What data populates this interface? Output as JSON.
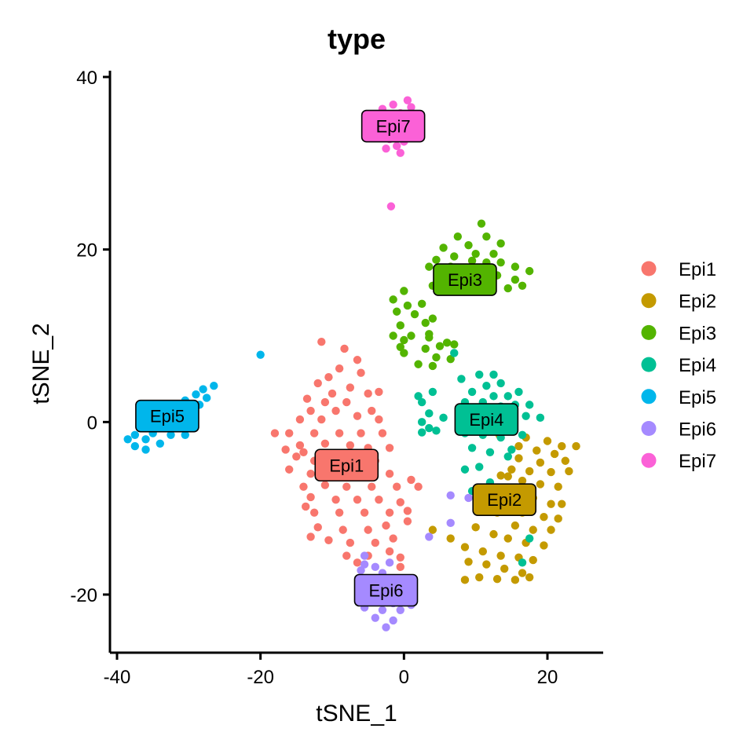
{
  "chart_data": {
    "type": "scatter",
    "title": "type",
    "xlabel": "tSNE_1",
    "ylabel": "tSNE_2",
    "xlim": [
      -41,
      27.5
    ],
    "ylim": [
      -26.5,
      41
    ],
    "xticks": [
      -40,
      -20,
      0,
      20
    ],
    "yticks": [
      -20,
      0,
      20,
      40
    ],
    "grid": false,
    "legend_position": "right",
    "series": [
      {
        "name": "Epi1",
        "color": "#F8766D",
        "label_pos": [
          -8,
          -5
        ],
        "points": [
          [
            -11.5,
            9.3
          ],
          [
            -6.5,
            7.2
          ],
          [
            -9,
            6.2
          ],
          [
            -10.5,
            5.2
          ],
          [
            -6,
            5.7
          ],
          [
            -12,
            4.5
          ],
          [
            -7.5,
            4
          ],
          [
            -10,
            3.3
          ],
          [
            -5,
            3.3
          ],
          [
            -13.5,
            2.7
          ],
          [
            -11,
            2.3
          ],
          [
            -8,
            2.3
          ],
          [
            -4.5,
            1.3
          ],
          [
            -13,
            1.3
          ],
          [
            -9.5,
            1.3
          ],
          [
            -6.5,
            0.7
          ],
          [
            -14.5,
            0.3
          ],
          [
            -11.5,
            0.3
          ],
          [
            -3.5,
            0.3
          ],
          [
            -16,
            -1.3
          ],
          [
            -12.5,
            -1.3
          ],
          [
            -9,
            -1.3
          ],
          [
            -6,
            -1.3
          ],
          [
            -3,
            -1.3
          ],
          [
            -14.5,
            -2.7
          ],
          [
            -11,
            -2.5
          ],
          [
            -7.5,
            -2.7
          ],
          [
            -5,
            -3
          ],
          [
            -2,
            -3
          ],
          [
            -15,
            -4
          ],
          [
            -12.5,
            -4.5
          ],
          [
            -9,
            -4.2
          ],
          [
            -4,
            -4.5
          ],
          [
            -16,
            -5.5
          ],
          [
            -13,
            -6
          ],
          [
            -10,
            -5.7
          ],
          [
            -6,
            -6
          ],
          [
            -2,
            -6
          ],
          [
            1,
            -6.7
          ],
          [
            -14,
            -7.5
          ],
          [
            -11,
            -7.3
          ],
          [
            -8,
            -7.5
          ],
          [
            -4.5,
            -7.5
          ],
          [
            -1,
            -7.5
          ],
          [
            2,
            -7.5
          ],
          [
            -13,
            -8.7
          ],
          [
            -9.5,
            -9
          ],
          [
            -6.5,
            -9
          ],
          [
            -3.5,
            -9
          ],
          [
            -0.5,
            -9.3
          ],
          [
            -12.5,
            -10.5
          ],
          [
            -9,
            -10.5
          ],
          [
            -5.5,
            -10.5
          ],
          [
            -2,
            -10.5
          ],
          [
            0.5,
            -10.3
          ],
          [
            -12,
            -12.2
          ],
          [
            -8.5,
            -12.5
          ],
          [
            -5,
            -12.5
          ],
          [
            -2.5,
            -12
          ],
          [
            0.5,
            -11.5
          ],
          [
            -13,
            -13.3
          ],
          [
            -10.5,
            -13.7
          ],
          [
            -7.5,
            -14
          ],
          [
            -4,
            -14
          ],
          [
            -1.5,
            -13.5
          ],
          [
            -8,
            -15.5
          ],
          [
            -5,
            -15.5
          ],
          [
            -2,
            -15
          ],
          [
            -6.5,
            -16.3
          ],
          [
            -0.5,
            -15.7
          ],
          [
            -0.5,
            -16.8
          ],
          [
            -18,
            -1.3
          ],
          [
            -16.5,
            -3.2
          ],
          [
            -14,
            -3.5
          ],
          [
            -13.7,
            -9.8
          ],
          [
            -3.5,
            3.5
          ],
          [
            -8.3,
            8.5
          ]
        ]
      },
      {
        "name": "Epi2",
        "color": "#C49A00",
        "label_pos": [
          14,
          -9
        ],
        "points": [
          [
            17,
            -1.8
          ],
          [
            20,
            -2.2
          ],
          [
            22,
            -2.8
          ],
          [
            24,
            -2.8
          ],
          [
            18.5,
            -3.3
          ],
          [
            21,
            -3.7
          ],
          [
            16,
            -4.2
          ],
          [
            19,
            -4.7
          ],
          [
            22.5,
            -4.5
          ],
          [
            15,
            -5.5
          ],
          [
            17.5,
            -5.7
          ],
          [
            20.5,
            -5.8
          ],
          [
            23,
            -5.7
          ],
          [
            13.5,
            -6.2
          ],
          [
            16.5,
            -6.8
          ],
          [
            19,
            -7.2
          ],
          [
            21.5,
            -7.5
          ],
          [
            15,
            -7.8
          ],
          [
            18,
            -8.8
          ],
          [
            20.5,
            -9.5
          ],
          [
            22,
            -9.5
          ],
          [
            16.5,
            -10.5
          ],
          [
            19.5,
            -11
          ],
          [
            21.5,
            -11.2
          ],
          [
            13,
            -10.5
          ],
          [
            15.5,
            -12
          ],
          [
            18,
            -12.5
          ],
          [
            20.5,
            -12.5
          ],
          [
            10,
            -12.2
          ],
          [
            12.5,
            -13
          ],
          [
            14.5,
            -13.5
          ],
          [
            17,
            -14
          ],
          [
            19.5,
            -14.3
          ],
          [
            8.5,
            -14.5
          ],
          [
            11,
            -15
          ],
          [
            13.5,
            -15.5
          ],
          [
            16,
            -15.7
          ],
          [
            18,
            -16
          ],
          [
            9,
            -16.2
          ],
          [
            11.5,
            -16.5
          ],
          [
            14,
            -17
          ],
          [
            16.5,
            -17.5
          ],
          [
            10.5,
            -18
          ],
          [
            13,
            -18.2
          ],
          [
            15.5,
            -18.3
          ],
          [
            17.5,
            -18
          ],
          [
            6.5,
            -13.5
          ],
          [
            8.5,
            -18.3
          ],
          [
            4,
            -12.5
          ],
          [
            14.5,
            -6.3
          ],
          [
            16,
            -2.8
          ],
          [
            13.3,
            -1.5
          ]
        ]
      },
      {
        "name": "Epi3",
        "color": "#53B400",
        "label_pos": [
          8.5,
          16.5
        ],
        "points": [
          [
            10.8,
            23
          ],
          [
            7.5,
            21.5
          ],
          [
            11.5,
            21.5
          ],
          [
            9,
            20.5
          ],
          [
            13.5,
            20.7
          ],
          [
            5.5,
            20.2
          ],
          [
            10,
            19.5
          ],
          [
            12.5,
            19.5
          ],
          [
            7,
            19.2
          ],
          [
            4.5,
            18.8
          ],
          [
            9.5,
            18.7
          ],
          [
            11.5,
            18.5
          ],
          [
            13.5,
            18.5
          ],
          [
            3.5,
            18
          ],
          [
            6.5,
            18
          ],
          [
            8.5,
            17.7
          ],
          [
            15.5,
            18
          ],
          [
            17.5,
            17.5
          ],
          [
            5,
            17
          ],
          [
            10.5,
            17
          ],
          [
            13,
            17
          ],
          [
            15.5,
            16.5
          ],
          [
            4,
            15.8
          ],
          [
            9,
            16
          ],
          [
            12,
            15.5
          ],
          [
            14.5,
            15.5
          ],
          [
            7,
            15.5
          ],
          [
            16.5,
            15.8
          ],
          [
            -1.5,
            14.2
          ],
          [
            0,
            15.2
          ],
          [
            0.5,
            13.5
          ],
          [
            -1,
            12.8
          ],
          [
            1.5,
            12.5
          ],
          [
            2.5,
            13.7
          ],
          [
            -0.5,
            11.2
          ],
          [
            3,
            11.5
          ],
          [
            4,
            12
          ],
          [
            3.5,
            10.2
          ],
          [
            -1.5,
            10
          ],
          [
            0,
            9.5
          ],
          [
            1,
            10
          ],
          [
            -0.5,
            8.7
          ],
          [
            3,
            8.5
          ],
          [
            6,
            9.2
          ],
          [
            5,
            8.8
          ],
          [
            7,
            9
          ],
          [
            4.5,
            7.5
          ],
          [
            6.5,
            7.3
          ],
          [
            2,
            6.7
          ],
          [
            4,
            6.5
          ],
          [
            0,
            8
          ],
          [
            3.5,
            9.8
          ]
        ]
      },
      {
        "name": "Epi4",
        "color": "#00C094",
        "label_pos": [
          11.5,
          0.3
        ],
        "points": [
          [
            10.5,
            5.5
          ],
          [
            12.5,
            5.5
          ],
          [
            8,
            5
          ],
          [
            11.5,
            4.2
          ],
          [
            13.5,
            4.5
          ],
          [
            9.5,
            3.5
          ],
          [
            12.5,
            3
          ],
          [
            14.5,
            3
          ],
          [
            16,
            3.5
          ],
          [
            8.5,
            2.3
          ],
          [
            11,
            2.3
          ],
          [
            13.5,
            1.8
          ],
          [
            15.5,
            2
          ],
          [
            17.5,
            2
          ],
          [
            9.5,
            1.2
          ],
          [
            12,
            0.8
          ],
          [
            14.5,
            0.5
          ],
          [
            17,
            0.7
          ],
          [
            19,
            0.5
          ],
          [
            2.5,
            2.3
          ],
          [
            3.5,
            1
          ],
          [
            2.5,
            0
          ],
          [
            3.5,
            -0.7
          ],
          [
            4.5,
            -1
          ],
          [
            2.5,
            -1.2
          ],
          [
            8.5,
            -1.3
          ],
          [
            11,
            -1.5
          ],
          [
            13.5,
            -1.8
          ],
          [
            16.5,
            -1.5
          ],
          [
            9.5,
            -3
          ],
          [
            12,
            -3.5
          ],
          [
            14.5,
            -4
          ],
          [
            8.5,
            -5.5
          ],
          [
            10.5,
            -5.2
          ],
          [
            12,
            -7
          ],
          [
            9.5,
            -8
          ],
          [
            15,
            -3.2
          ],
          [
            13,
            -9.5
          ],
          [
            17.5,
            -13.5
          ],
          [
            16.5,
            -16.3
          ],
          [
            7,
            8
          ],
          [
            5.5,
            0.5
          ],
          [
            2,
            3
          ],
          [
            4,
            3.5
          ]
        ]
      },
      {
        "name": "Epi5",
        "color": "#00B6EB",
        "label_pos": [
          -33,
          0.7
        ],
        "points": [
          [
            -20,
            7.8
          ],
          [
            -26.5,
            4.2
          ],
          [
            -28,
            3.8
          ],
          [
            -29,
            3.2
          ],
          [
            -27.5,
            2.8
          ],
          [
            -30.5,
            2.5
          ],
          [
            -28.5,
            2
          ],
          [
            -31.5,
            1.7
          ],
          [
            -30,
            1.2
          ],
          [
            -33.5,
            1.2
          ],
          [
            -32,
            0.5
          ],
          [
            -35,
            0.2
          ],
          [
            -33.5,
            -0.5
          ],
          [
            -36.5,
            -0.7
          ],
          [
            -31,
            -0.5
          ],
          [
            -35,
            -1.3
          ],
          [
            -37.5,
            -1.5
          ],
          [
            -32.5,
            -1.5
          ],
          [
            -36,
            -2
          ],
          [
            -38.5,
            -2
          ],
          [
            -34,
            -2.5
          ],
          [
            -37.5,
            -2.8
          ],
          [
            -36,
            -3.2
          ],
          [
            -30.5,
            -1.5
          ]
        ]
      },
      {
        "name": "Epi6",
        "color": "#A58AFF",
        "label_pos": [
          -2.5,
          -19.5
        ],
        "points": [
          [
            -5.5,
            -16.5
          ],
          [
            -4,
            -16.8
          ],
          [
            -6,
            -17.2
          ],
          [
            -3,
            -17.5
          ],
          [
            -5,
            -18.3
          ],
          [
            -1.5,
            -18.5
          ],
          [
            -4,
            -19.3
          ],
          [
            -6,
            -19.5
          ],
          [
            -2.5,
            -20
          ],
          [
            0,
            -20
          ],
          [
            -4.5,
            -20.8
          ],
          [
            -1.5,
            -21
          ],
          [
            1,
            -21.2
          ],
          [
            -5.5,
            -21.5
          ],
          [
            -3,
            -21.8
          ],
          [
            -0.5,
            -21.8
          ],
          [
            -4,
            -22.7
          ],
          [
            -1.5,
            -23
          ],
          [
            -2.5,
            -23.8
          ],
          [
            -5.5,
            -15.5
          ],
          [
            6.5,
            -8.5
          ],
          [
            9,
            -8.8
          ],
          [
            6.5,
            -11.7
          ],
          [
            3.5,
            -13.3
          ],
          [
            -2,
            -16.3
          ]
        ]
      },
      {
        "name": "Epi7",
        "color": "#FB61D7",
        "label_pos": [
          -1.5,
          34.3
        ],
        "points": [
          [
            0.5,
            37.3
          ],
          [
            -1.5,
            36.8
          ],
          [
            1,
            36.5
          ],
          [
            -3,
            36.3
          ],
          [
            -0.5,
            35.8
          ],
          [
            1.5,
            35.5
          ],
          [
            -2.5,
            35.2
          ],
          [
            0,
            34.8
          ],
          [
            -4,
            34.8
          ],
          [
            2,
            34.5
          ],
          [
            -1.5,
            34.2
          ],
          [
            0.5,
            33.8
          ],
          [
            -3,
            33.5
          ],
          [
            1.5,
            33.2
          ],
          [
            -2,
            32.8
          ],
          [
            0,
            32.5
          ],
          [
            -1,
            32
          ],
          [
            -2.5,
            31.7
          ],
          [
            -0.5,
            31.2
          ],
          [
            -1.8,
            25
          ]
        ]
      }
    ]
  }
}
